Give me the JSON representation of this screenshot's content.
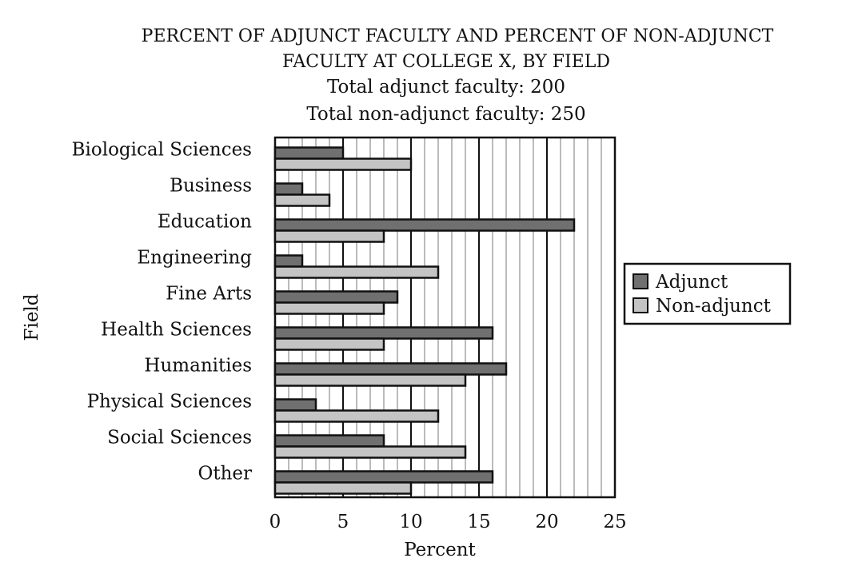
{
  "chart_data": {
    "type": "bar",
    "orientation": "horizontal",
    "title_lines": [
      "PERCENT OF ADJUNCT FACULTY AND PERCENT OF NON-ADJUNCT",
      "FACULTY AT COLLEGE X, BY FIELD"
    ],
    "subtitle_lines": [
      "Total adjunct faculty:  200",
      "Total non-adjunct faculty:  250"
    ],
    "xlabel": "Percent",
    "ylabel": "Field",
    "xlim": [
      0,
      25
    ],
    "xticks": [
      0,
      5,
      10,
      15,
      20,
      25
    ],
    "grid": true,
    "legend_position": "right",
    "categories": [
      "Biological Sciences",
      "Business",
      "Education",
      "Engineering",
      "Fine Arts",
      "Health Sciences",
      "Humanities",
      "Physical Sciences",
      "Social Sciences",
      "Other"
    ],
    "series": [
      {
        "name": "Adjunct",
        "color": "#707070",
        "values": [
          5,
          2,
          22,
          2,
          9,
          16,
          17,
          3,
          8,
          16
        ]
      },
      {
        "name": "Non-adjunct",
        "color": "#c4c4c4",
        "values": [
          10,
          4,
          8,
          12,
          8,
          8,
          14,
          12,
          14,
          10
        ]
      }
    ]
  }
}
